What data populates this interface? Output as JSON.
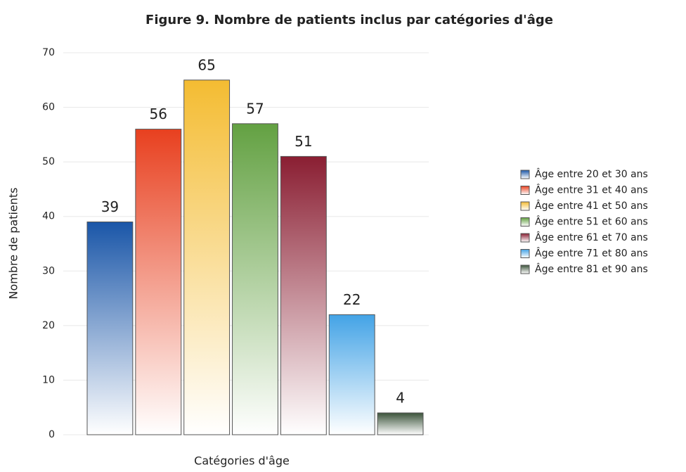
{
  "chart_data": {
    "type": "bar",
    "title": "Figure 9. Nombre de patients inclus par catégories d'âge",
    "x_label": "Catégories d'âge",
    "y_label": "Nombre de patients",
    "ylim": [
      0,
      70
    ],
    "yticks": [
      0,
      10,
      20,
      30,
      40,
      50,
      60,
      70
    ],
    "grid": true,
    "legend": "right",
    "series": [
      {
        "name": "Âge entre 20 et 30 ans",
        "color": "#1a56a8",
        "values": [
          39
        ]
      },
      {
        "name": "Âge entre 31 et 40 ans",
        "color": "#e8401f",
        "values": [
          56
        ]
      },
      {
        "name": "Âge entre 41 et 50 ans",
        "color": "#f4bc32",
        "values": [
          65
        ]
      },
      {
        "name": "Âge entre 51 et 60 ans",
        "color": "#63a142",
        "values": [
          57
        ]
      },
      {
        "name": "Âge entre 61 et 70 ans",
        "color": "#8a1e32",
        "values": [
          51
        ]
      },
      {
        "name": "Âge entre 71 et 80 ans",
        "color": "#43a3e6",
        "values": [
          22
        ]
      },
      {
        "name": "Âge entre 81 et 90 ans",
        "color": "#3b533a",
        "values": [
          4
        ]
      }
    ]
  }
}
